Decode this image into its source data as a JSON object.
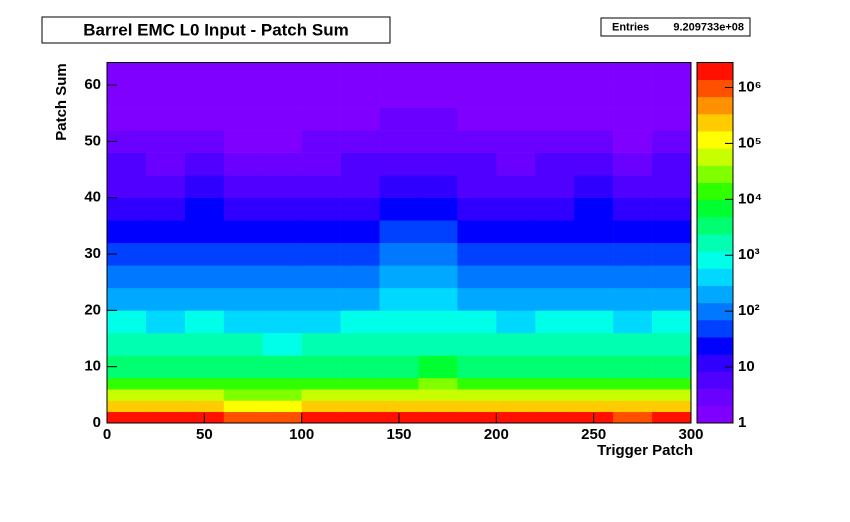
{
  "chart_data": {
    "type": "heatmap",
    "title": "Barrel EMC L0 Input - Patch Sum",
    "stats": {
      "name": "Entries",
      "value": 920973300,
      "label": "9.209733e+08"
    },
    "x_label": "Trigger Patch",
    "y_label": "Patch Sum",
    "xbins": [
      0,
      20,
      40,
      60,
      80,
      100,
      120,
      140,
      160,
      180,
      200,
      220,
      240,
      260,
      280,
      300
    ],
    "ybins": [
      0,
      2,
      4,
      6,
      8,
      12,
      16,
      20,
      24,
      28,
      32,
      36,
      40,
      44,
      48,
      52,
      56,
      60,
      64
    ],
    "z": [
      [
        1500000,
        1400000,
        1600000,
        1300000,
        1200000,
        1400000,
        1500000,
        1700000,
        1800000,
        1500000,
        1400000,
        1500000,
        1600000,
        1300000,
        1500000
      ],
      [
        200000,
        180000,
        220000,
        160000,
        150000,
        190000,
        210000,
        240000,
        260000,
        200000,
        180000,
        200000,
        230000,
        170000,
        200000
      ],
      [
        50000,
        45000,
        55000,
        40000,
        38000,
        47000,
        52000,
        60000,
        65000,
        50000,
        45000,
        50000,
        57000,
        42000,
        50000
      ],
      [
        15000,
        13500,
        16500,
        12000,
        11000,
        14000,
        16000,
        18000,
        20000,
        15000,
        13500,
        15000,
        17000,
        12500,
        15000
      ],
      [
        4000,
        3600,
        4400,
        3200,
        2800,
        3700,
        4200,
        4800,
        5200,
        4000,
        3600,
        4000,
        4600,
        3300,
        4000
      ],
      [
        1500,
        1350,
        1650,
        1200,
        1050,
        1400,
        1600,
        1800,
        2000,
        1500,
        1350,
        1500,
        1700,
        1250,
        1500
      ],
      [
        600,
        540,
        660,
        480,
        420,
        560,
        640,
        720,
        800,
        600,
        540,
        600,
        680,
        500,
        600
      ],
      [
        250,
        225,
        275,
        200,
        175,
        230,
        265,
        300,
        330,
        250,
        225,
        250,
        285,
        210,
        250
      ],
      [
        120,
        108,
        132,
        96,
        84,
        110,
        128,
        144,
        160,
        120,
        108,
        120,
        136,
        100,
        120
      ],
      [
        60,
        54,
        66,
        48,
        42,
        55,
        64,
        72,
        80,
        60,
        54,
        60,
        68,
        50,
        60
      ],
      [
        30,
        27,
        33,
        24,
        21,
        28,
        32,
        36,
        40,
        30,
        27,
        30,
        34,
        25,
        30
      ],
      [
        15,
        13,
        17,
        12,
        10,
        14,
        16,
        18,
        20,
        15,
        13,
        15,
        17,
        12,
        15
      ],
      [
        8,
        7,
        9,
        6,
        5,
        7,
        8,
        10,
        11,
        8,
        7,
        8,
        9,
        6,
        8
      ],
      [
        5,
        4,
        5,
        4,
        3,
        4,
        5,
        6,
        6,
        5,
        4,
        5,
        5,
        4,
        5
      ],
      [
        3,
        3,
        3,
        2,
        2,
        3,
        3,
        4,
        4,
        3,
        3,
        3,
        3,
        2,
        3
      ],
      [
        2,
        2,
        2,
        2,
        1.5,
        2,
        2,
        2.5,
        3,
        2,
        2,
        2,
        2,
        1.5,
        2
      ],
      [
        1.5,
        1.5,
        1.5,
        1.2,
        1.2,
        1.5,
        1.5,
        2,
        2,
        1.5,
        1.5,
        1.5,
        1.5,
        1.2,
        1.5
      ],
      [
        1,
        1,
        1,
        1,
        1,
        1,
        1,
        1.2,
        1.2,
        1,
        1,
        1,
        1,
        1,
        1
      ]
    ],
    "xlim": [
      0,
      300
    ],
    "xticks": [
      0,
      50,
      100,
      150,
      200,
      250,
      300
    ],
    "ylim": [
      0,
      64
    ],
    "yticks": [
      0,
      10,
      20,
      30,
      40,
      50,
      60
    ],
    "zlim": [
      1,
      2800000
    ],
    "zscale": "log",
    "zticks": [
      1,
      10,
      {
        "value": 100,
        "label": "10²"
      },
      {
        "value": 1000,
        "label": "10³"
      },
      {
        "value": 10000,
        "label": "10⁴"
      },
      {
        "value": 100000,
        "label": "10⁵"
      },
      {
        "value": 1000000,
        "label": "10⁶"
      }
    ],
    "palette": [
      "#8000ff",
      "#6a00ff",
      "#5000ff",
      "#3000ff",
      "#0000ff",
      "#0040ff",
      "#0078ff",
      "#00a8ff",
      "#00d8ff",
      "#00ffe8",
      "#00ffb0",
      "#00ff70",
      "#00ff30",
      "#30ff00",
      "#80ff00",
      "#c8ff00",
      "#ffff00",
      "#ffcc00",
      "#ff9000",
      "#ff5000",
      "#ff1000"
    ]
  }
}
